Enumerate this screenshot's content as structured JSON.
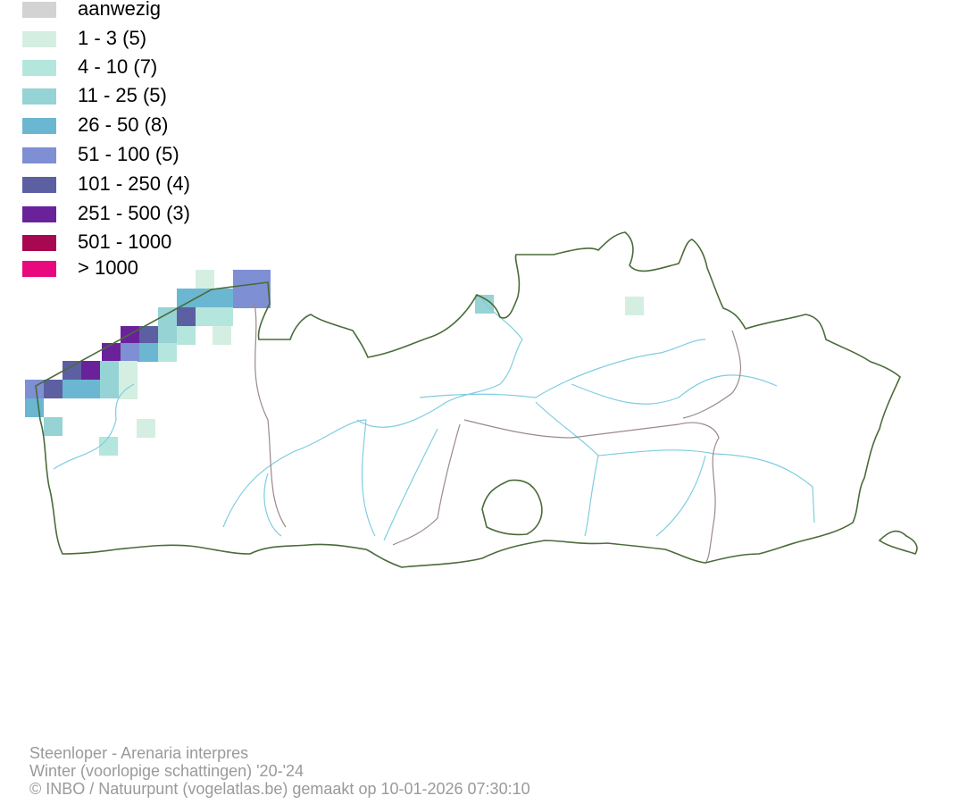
{
  "legend": {
    "items": [
      {
        "label": "aanwezig",
        "color": "#d3d3d3"
      },
      {
        "label": "1 - 3 (5)",
        "color": "#d4efe2"
      },
      {
        "label": "4 - 10 (7)",
        "color": "#b5e6dd"
      },
      {
        "label": "11 - 25 (5)",
        "color": "#96d3d5"
      },
      {
        "label": "26 - 50 (8)",
        "color": "#6bb7d1"
      },
      {
        "label": "51 - 100 (5)",
        "color": "#7f8fd3"
      },
      {
        "label": "101 - 250 (4)",
        "color": "#5d5fa3"
      },
      {
        "label": "251 - 500 (3)",
        "color": "#6a229a"
      },
      {
        "label": "501 - 1000",
        "color": "#a8084f"
      },
      {
        "label": "> 1000",
        "color": "#e8097e"
      }
    ]
  },
  "footer": {
    "species": "Steenloper - Arenaria interpres",
    "period": "Winter (voorlopige schattingen) '20-'24",
    "credit": "© INBO / Natuurpunt (vogelatlas.be) gemaakt op 10-01-2026 07:30:10"
  }
}
